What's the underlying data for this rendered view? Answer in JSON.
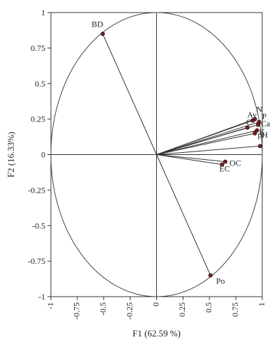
{
  "chart_data": {
    "type": "scatter",
    "title": "",
    "xlabel": "F1 (62.59 %)",
    "ylabel": "F2 (16.33%)",
    "xlim": [
      -1,
      1
    ],
    "ylim": [
      -1,
      1
    ],
    "xticks": [
      "-1",
      "-0.75",
      "-0.5",
      "-0.25",
      "0",
      "0.25",
      "0.5",
      "0.75",
      "1"
    ],
    "yticks": [
      "1",
      "0.75",
      "0.5",
      "0.25",
      "0",
      "-0.25",
      "-0.5",
      "-0.75",
      "-1"
    ],
    "correlation_circle": true,
    "vectors_from_origin": true,
    "points": [
      {
        "label": "BD",
        "x": -0.51,
        "y": 0.85
      },
      {
        "label": "N",
        "x": 0.93,
        "y": 0.25
      },
      {
        "label": "Av",
        "x": 0.91,
        "y": 0.24
      },
      {
        "label": "P",
        "x": 0.97,
        "y": 0.23
      },
      {
        "label": "Ca",
        "x": 0.96,
        "y": 0.21
      },
      {
        "label": "C",
        "x": 0.86,
        "y": 0.19
      },
      {
        "label": "K",
        "x": 0.95,
        "y": 0.17
      },
      {
        "label": "pH",
        "x": 0.93,
        "y": 0.15
      },
      {
        "label": "",
        "x": 0.98,
        "y": 0.06
      },
      {
        "label": "OC",
        "x": 0.65,
        "y": -0.05
      },
      {
        "label": "EC",
        "x": 0.62,
        "y": -0.07
      },
      {
        "label": "Po",
        "x": 0.51,
        "y": -0.85
      }
    ]
  }
}
